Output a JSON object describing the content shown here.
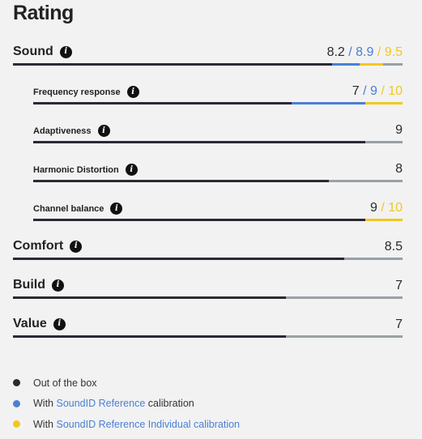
{
  "title": "Rating",
  "colors": {
    "out_of_box": "#2a2a33",
    "reference": "#4a7fd4",
    "individual": "#f2c81f",
    "track": "#9aa0a6"
  },
  "ratings": {
    "sound": {
      "label": "Sound",
      "info_icon": "info-icon",
      "out": "8.2",
      "ref": "8.9",
      "ind": "9.5"
    },
    "frequency_response": {
      "label": "Frequency response",
      "info_icon": "info-icon",
      "out": "7",
      "ref": "9",
      "ind": "10"
    },
    "adaptiveness": {
      "label": "Adaptiveness",
      "info_icon": "info-icon",
      "out": "9"
    },
    "harmonic_distortion": {
      "label": "Harmonic Distortion",
      "info_icon": "info-icon",
      "out": "8"
    },
    "channel_balance": {
      "label": "Channel balance",
      "info_icon": "info-icon",
      "out": "9",
      "ind": "10"
    },
    "comfort": {
      "label": "Comfort",
      "info_icon": "info-icon",
      "out": "8.5"
    },
    "build": {
      "label": "Build",
      "info_icon": "info-icon",
      "out": "7"
    },
    "value": {
      "label": "Value",
      "info_icon": "info-icon",
      "out": "7"
    }
  },
  "legend": {
    "out_of_box": {
      "text": "Out of the box"
    },
    "reference": {
      "prefix": "With ",
      "link": "SoundID Reference",
      "suffix": " calibration"
    },
    "individual": {
      "prefix": "With ",
      "link": "SoundID Reference Individual calibration"
    }
  }
}
